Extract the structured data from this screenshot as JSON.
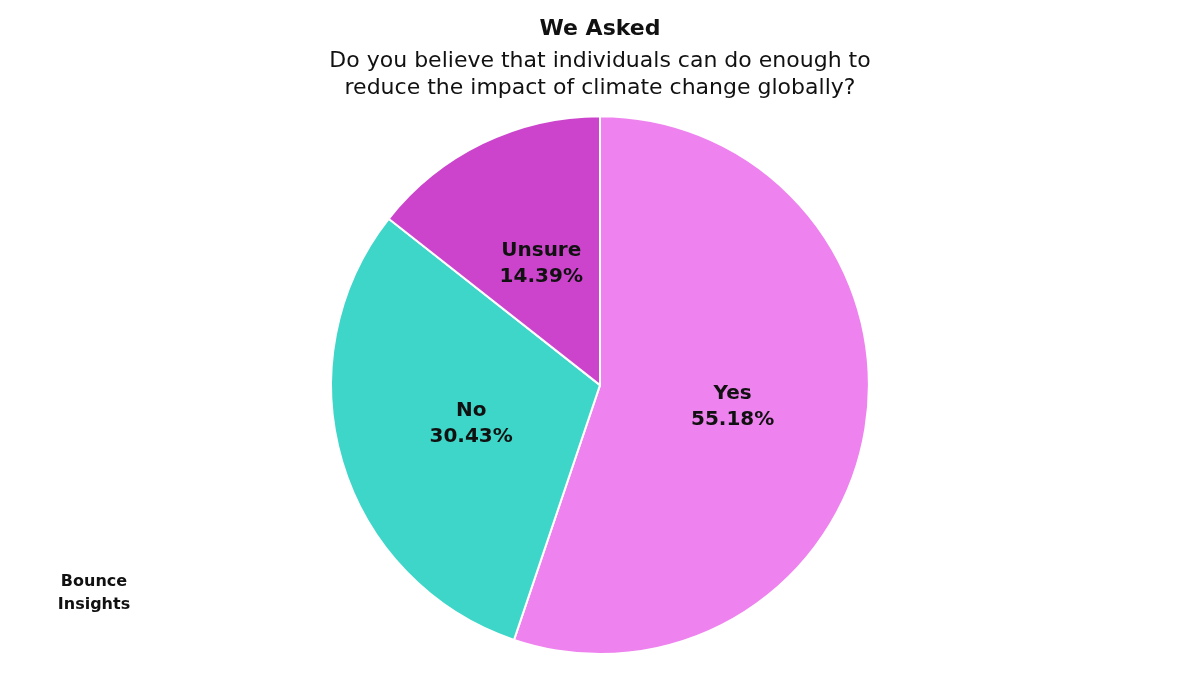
{
  "chart_data": {
    "type": "pie",
    "title": "We Asked",
    "subtitle": [
      "Do you believe that individuals can do enough to",
      "reduce the impact of climate change globally?"
    ],
    "categories": [
      "Yes",
      "No",
      "Unsure"
    ],
    "values": [
      55.18,
      30.43,
      14.39
    ],
    "value_labels": [
      "55.18%",
      "30.43%",
      "14.39%"
    ],
    "colors": [
      "#EE82EE",
      "#3DD6C8",
      "#CC44CC"
    ],
    "data_labels": true,
    "annotations": [
      "Bounce",
      "Insights"
    ]
  }
}
